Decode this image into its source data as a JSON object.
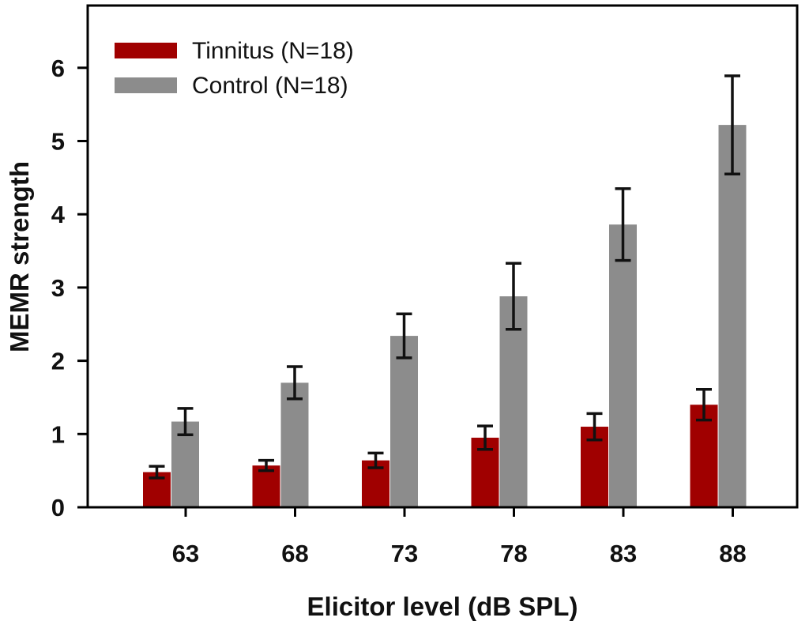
{
  "chart_data": {
    "type": "bar",
    "title": "",
    "xlabel": "Elicitor level (dB SPL)",
    "ylabel": "MEMR strength",
    "categories": [
      "63",
      "68",
      "73",
      "78",
      "83",
      "88"
    ],
    "ylim": [
      0,
      6.9
    ],
    "yticks": [
      0,
      1,
      2,
      3,
      4,
      5,
      6
    ],
    "grid": false,
    "legend_position": "top-left",
    "series": [
      {
        "name": "Tinnitus (N=18)",
        "color": "#a00000",
        "values": [
          0.48,
          0.57,
          0.64,
          0.95,
          1.1,
          1.4
        ],
        "errors": [
          0.08,
          0.07,
          0.1,
          0.16,
          0.18,
          0.21
        ]
      },
      {
        "name": "Control (N=18)",
        "color": "#8c8c8c",
        "values": [
          1.17,
          1.7,
          2.34,
          2.88,
          3.86,
          5.22
        ],
        "errors": [
          0.18,
          0.22,
          0.3,
          0.45,
          0.49,
          0.67
        ]
      }
    ]
  }
}
